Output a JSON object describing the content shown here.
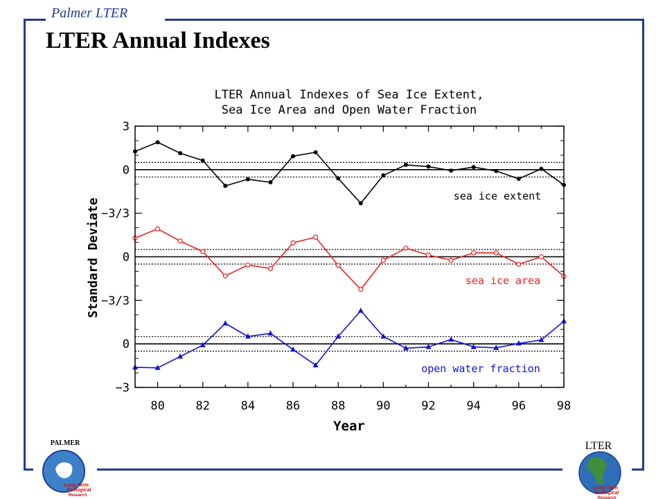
{
  "header": {
    "brand": "Palmer LTER",
    "title": "LTER Annual Indexes"
  },
  "logos": {
    "palmer_label": "PALMER",
    "palmer_text": [
      "Long Term",
      "Ecological",
      "Research"
    ],
    "lter_label": "LTER",
    "lter_text": [
      "Long Term",
      "Ecological",
      "Research"
    ]
  },
  "colors": {
    "frame": "#1f3a93",
    "extent": "#000000",
    "area": "#ee2222",
    "open_water": "#1111dd"
  },
  "chart_data": {
    "type": "line",
    "title": [
      "LTER Annual Indexes of Sea Ice Extent,",
      "Sea Ice Area and Open Water Fraction"
    ],
    "xlabel": "Year",
    "ylabel": "Standard Deviate",
    "xlim": [
      79,
      98
    ],
    "x": [
      79,
      80,
      81,
      82,
      83,
      84,
      85,
      86,
      87,
      88,
      89,
      90,
      91,
      92,
      93,
      94,
      95,
      96,
      97,
      98
    ],
    "x_ticks": [
      80,
      82,
      84,
      86,
      88,
      90,
      92,
      94,
      96,
      98
    ],
    "y_tick_labels": [
      "3",
      "0",
      "−3/3",
      "0",
      "−3/3",
      "0",
      "−3"
    ],
    "panel_range": [
      -1,
      1
    ],
    "dotted_levels": [
      0.167,
      -0.167
    ],
    "series": [
      {
        "name": "sea ice extent",
        "color": "#000000",
        "marker": "filled-circle",
        "values": [
          0.42,
          0.63,
          0.38,
          0.21,
          -0.37,
          -0.22,
          -0.29,
          0.31,
          0.4,
          -0.2,
          -0.77,
          -0.13,
          0.11,
          0.07,
          -0.02,
          0.06,
          -0.03,
          -0.21,
          0.02,
          -0.35
        ]
      },
      {
        "name": "sea ice area",
        "color": "#ee2222",
        "marker": "open-circle",
        "values": [
          0.43,
          0.64,
          0.36,
          0.12,
          -0.44,
          -0.19,
          -0.27,
          0.32,
          0.45,
          -0.2,
          -0.75,
          -0.08,
          0.2,
          0.04,
          -0.08,
          0.09,
          0.09,
          -0.17,
          0.0,
          -0.45
        ]
      },
      {
        "name": "open water fraction",
        "color": "#1111dd",
        "marker": "filled-triangle",
        "values": [
          -0.54,
          -0.55,
          -0.29,
          -0.03,
          0.47,
          0.17,
          0.24,
          -0.13,
          -0.49,
          0.17,
          0.76,
          0.17,
          -0.1,
          -0.07,
          0.1,
          -0.07,
          -0.09,
          0.01,
          0.09,
          0.52
        ]
      }
    ]
  }
}
